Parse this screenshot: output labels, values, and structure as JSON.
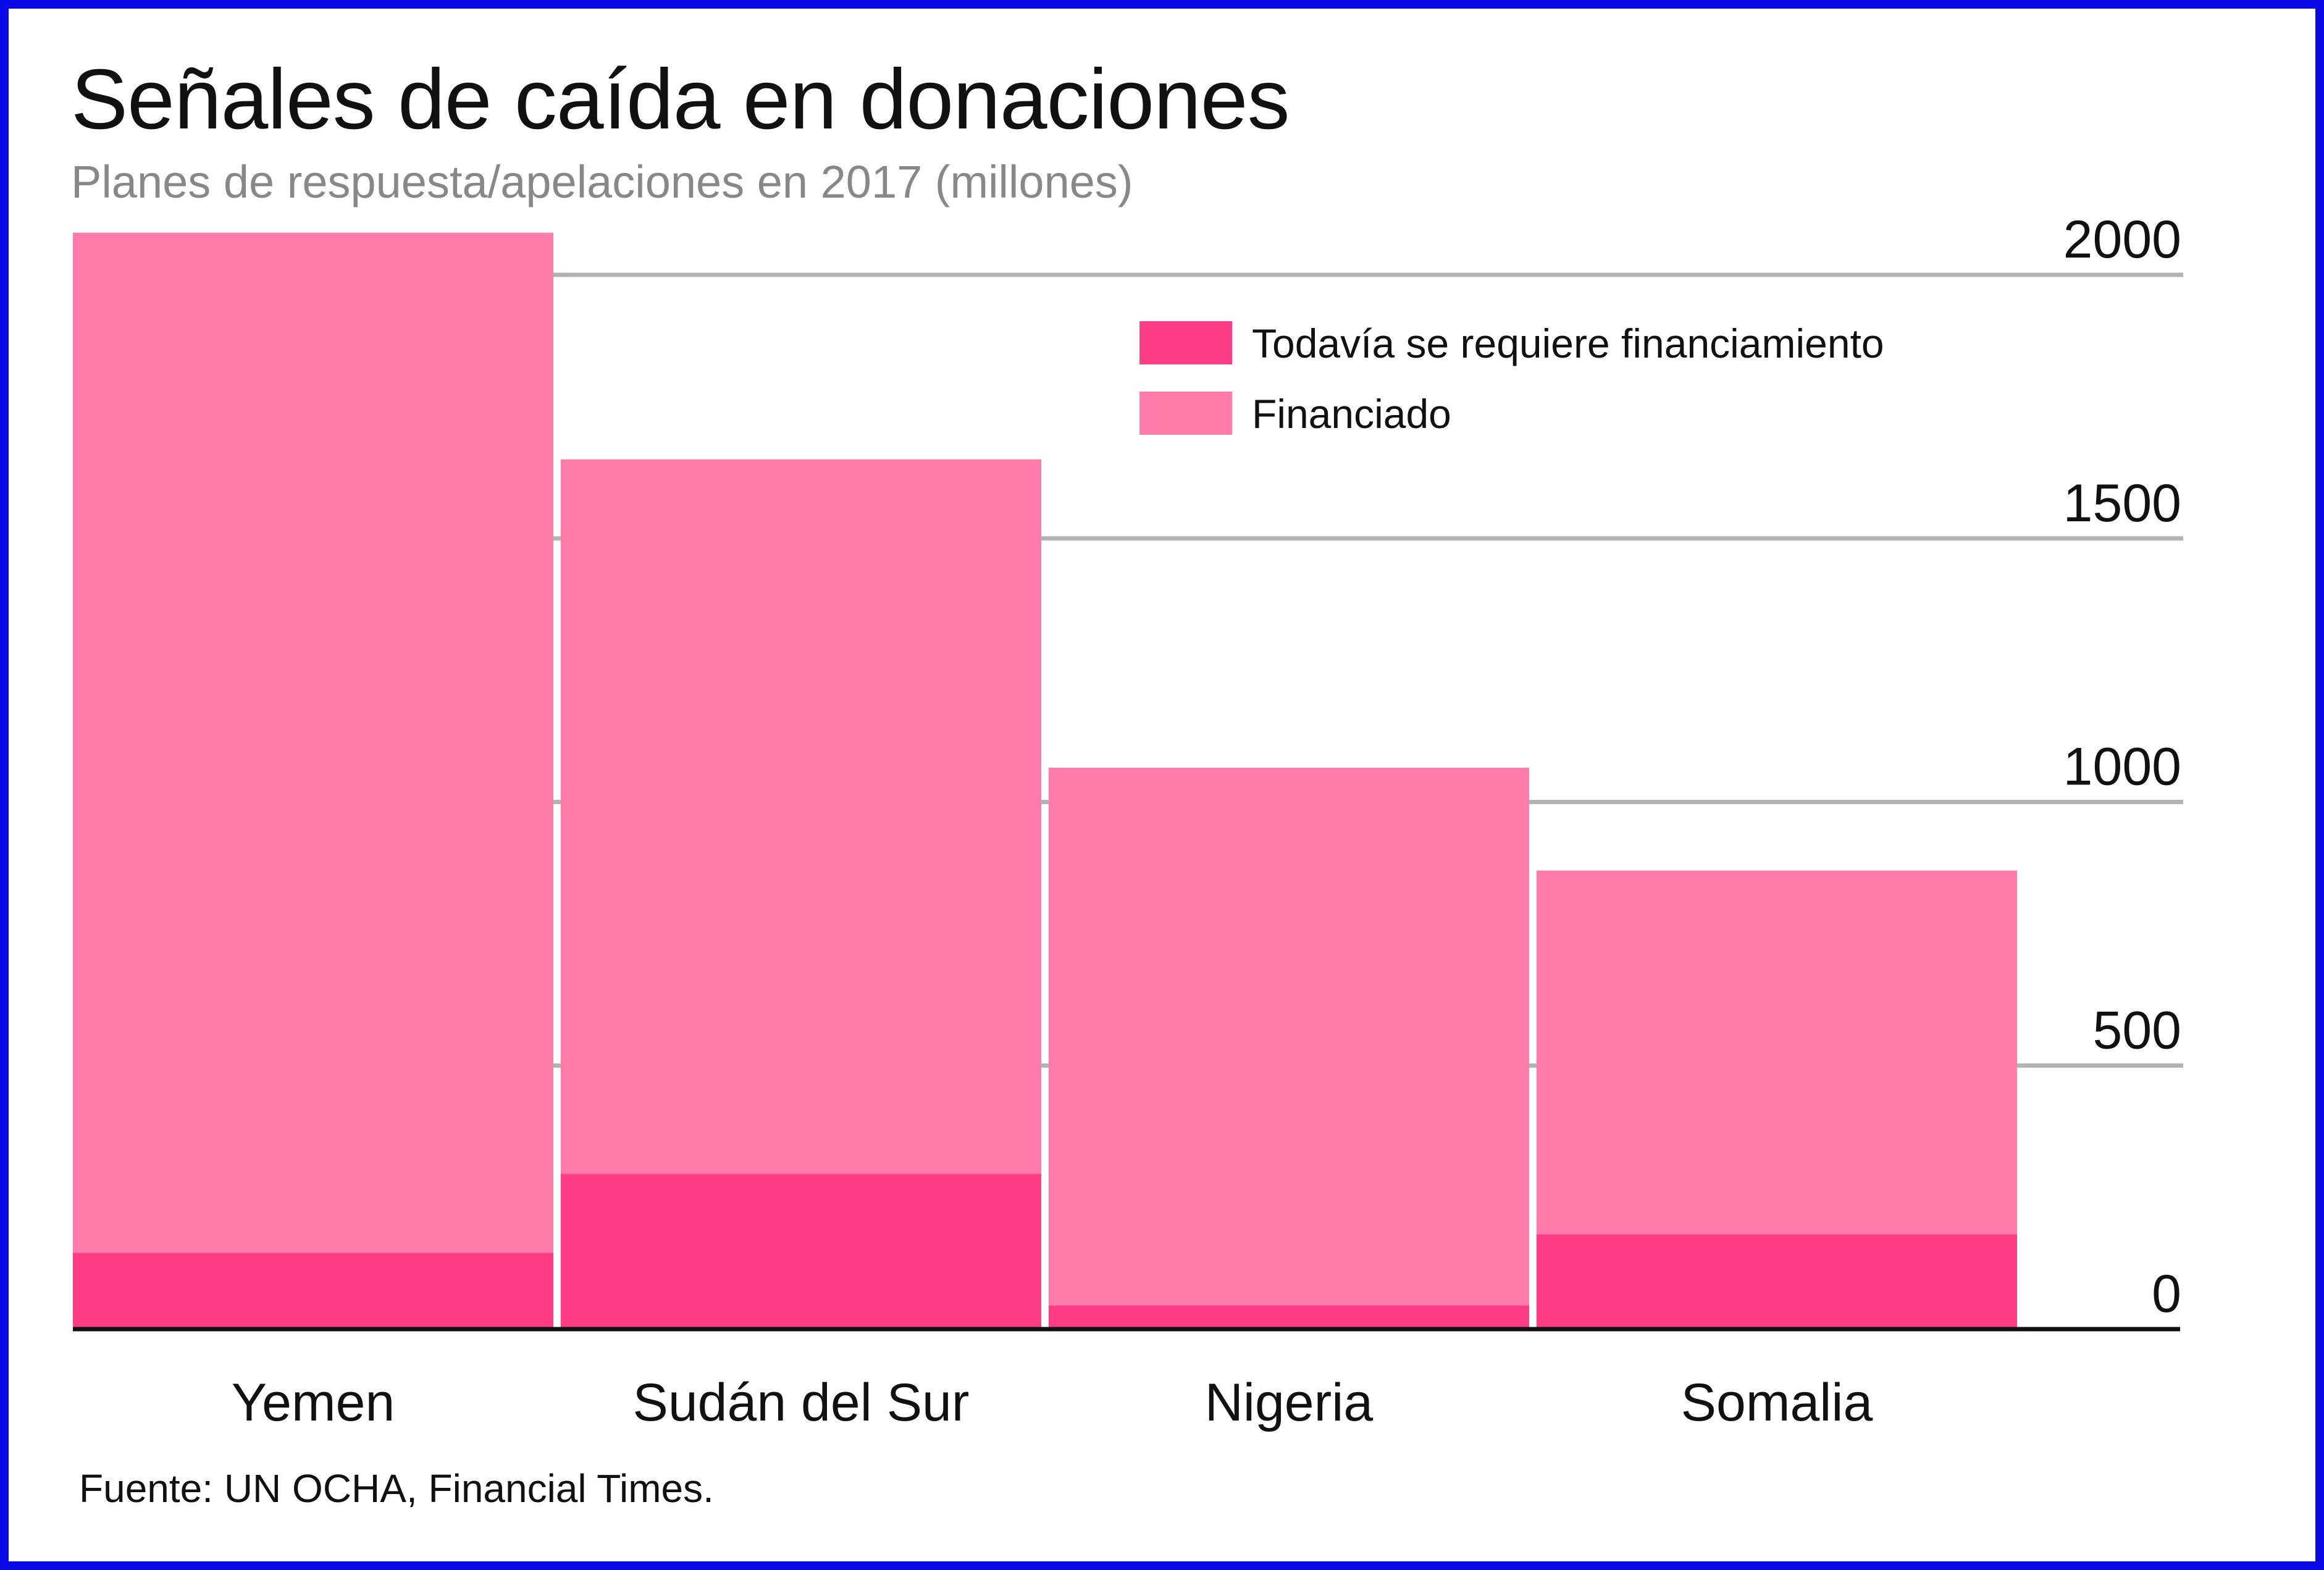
{
  "title": "Señales de caída en donaciones",
  "subtitle": "Planes de respuesta/apelaciones en 2017 (millones)",
  "source": "Fuente: UN OCHA, Financial Times.",
  "colors": {
    "frame": "#0a0ae6",
    "funded": "#ff7ba9",
    "still_required": "#ff3d87",
    "gridline": "#b3b3b3",
    "axis": "#111111"
  },
  "chart_data": {
    "type": "bar",
    "stacked": true,
    "categories": [
      "Yemen",
      "Sudán del Sur",
      "Nigeria",
      "Somalia"
    ],
    "series": [
      {
        "name": "Todavía se requiere financiamiento",
        "color": "#ff3d87",
        "values": [
          145,
          295,
          45,
          180
        ]
      },
      {
        "name": "Financiado",
        "color": "#ff7ba9",
        "values": [
          1935,
          1355,
          1020,
          690
        ]
      }
    ],
    "totals": [
      2080,
      1650,
      1065,
      870
    ],
    "yticks": [
      0,
      500,
      1000,
      1500,
      2000
    ],
    "ylim": [
      0,
      2080
    ],
    "y_axis_position": "right",
    "grid": true,
    "legend_position": "top-right"
  }
}
